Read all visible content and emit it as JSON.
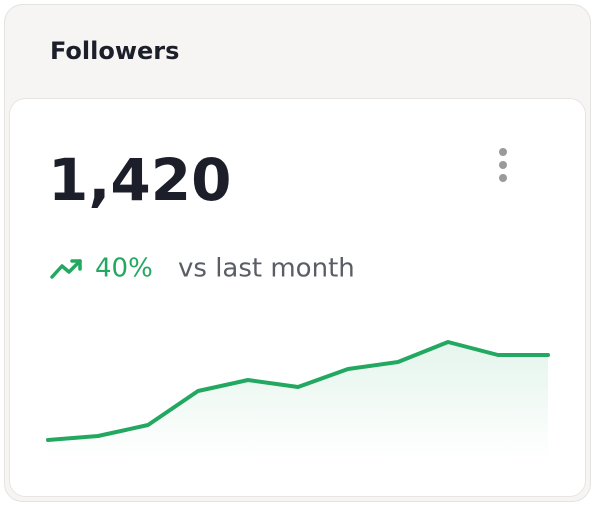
{
  "header": {
    "title": "Followers"
  },
  "metric": {
    "value": "1,420",
    "change": "40%",
    "comparison": "vs last month"
  },
  "chart_data": {
    "type": "line",
    "values": [
      20,
      24,
      35,
      69,
      80,
      73,
      91,
      98,
      118,
      105,
      105
    ],
    "color": "#22a860",
    "ylim": [
      0,
      140
    ]
  }
}
